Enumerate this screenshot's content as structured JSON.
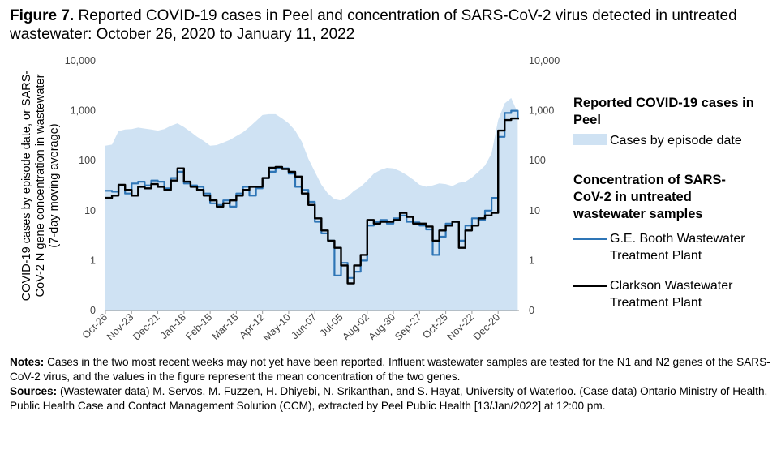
{
  "figure": {
    "label": "Figure 7.",
    "title": "Reported COVID-19 cases in Peel and concentration of SARS-CoV-2 virus detected in untreated wastewater: October 26, 2020 to January 11, 2022"
  },
  "legend": {
    "cases_heading": "Reported COVID-19 cases in Peel",
    "cases_item": "Cases by episode date",
    "ww_heading": "Concentration of SARS-CoV-2 in untreated wastewater samples",
    "booth_item": "G.E. Booth Wastewater Treatment Plant",
    "clarkson_item": "Clarkson Wastewater Treatment Plant"
  },
  "notes": {
    "notes_label": "Notes:",
    "notes_text": " Cases in the two most recent weeks may not yet have been reported. Influent wastewater samples are tested for the N1 and N2 genes of the SARS-CoV-2 virus, and the values in the figure represent the mean concentration of the two genes.",
    "sources_label": "Sources:",
    "sources_text": " (Wastewater data) M. Servos, M. Fuzzen, H. Dhiyebi, N. Srikanthan, and S. Hayat, University of Waterloo. (Case data) Ontario Ministry of Health, Public Health Case and Contact Management Solution (CCM), extracted by Peel Public Health [13/Jan/2022] at 12:00 pm."
  },
  "chart_data": {
    "type": "area",
    "scale": "log",
    "ylabel": "COVID-19 cases by episode date, or SARS-CoV-2 N gene concentration in wastewater (7-day moving average)",
    "y_ticks": [
      "10,000",
      "1,000",
      "100",
      "10",
      "1",
      "0"
    ],
    "x_tick_labels": [
      "Oct-26",
      "Nov-23",
      "Dec-21",
      "Jan-18",
      "Feb-15",
      "Mar-15",
      "Apr-12",
      "May-10",
      "Jun-07",
      "Jul-05",
      "Aug-02",
      "Aug-30",
      "Sep-27",
      "Oct-25",
      "Nov-22",
      "Dec-20"
    ],
    "x_ticks_weeks": [
      0,
      4,
      8,
      12,
      16,
      20,
      24,
      28,
      32,
      36,
      40,
      44,
      48,
      52,
      56,
      60
    ],
    "x_range_weeks": [
      0,
      63.2
    ],
    "colors": {
      "cases": "#cfe2f3",
      "booth": "#2e75b6",
      "clarkson": "#000000"
    },
    "series": [
      {
        "name": "Cases by episode date",
        "style": "area",
        "x_weeks": [
          0,
          1,
          2,
          3,
          4,
          5,
          6,
          7,
          8,
          9,
          10,
          11,
          12,
          13,
          14,
          15,
          16,
          17,
          18,
          19,
          20,
          21,
          22,
          23,
          24,
          25,
          26,
          27,
          28,
          29,
          30,
          31,
          32,
          33,
          34,
          35,
          36,
          37,
          38,
          39,
          40,
          41,
          42,
          43,
          44,
          45,
          46,
          47,
          48,
          49,
          50,
          51,
          52,
          53,
          54,
          55,
          56,
          57,
          58,
          59,
          60,
          61,
          62,
          63
        ],
        "values": [
          200,
          210,
          390,
          420,
          430,
          460,
          440,
          420,
          400,
          430,
          500,
          560,
          470,
          380,
          300,
          250,
          200,
          205,
          230,
          260,
          310,
          370,
          470,
          620,
          820,
          850,
          850,
          700,
          560,
          400,
          240,
          110,
          60,
          33,
          22,
          17,
          16,
          19,
          25,
          30,
          40,
          55,
          65,
          72,
          70,
          62,
          52,
          42,
          33,
          30,
          32,
          35,
          34,
          31,
          36,
          38,
          46,
          60,
          80,
          140,
          650,
          1400,
          1800,
          900
        ]
      },
      {
        "name": "G.E. Booth Wastewater Treatment Plant",
        "style": "line",
        "x_weeks": [
          0,
          1,
          2,
          3,
          4,
          5,
          6,
          7,
          8,
          9,
          10,
          11,
          12,
          13,
          14,
          15,
          16,
          17,
          18,
          19,
          20,
          21,
          22,
          23,
          24,
          25,
          26,
          27,
          28,
          29,
          30,
          31,
          32,
          33,
          34,
          35,
          36,
          37,
          38,
          39,
          40,
          41,
          42,
          43,
          44,
          45,
          46,
          47,
          48,
          49,
          50,
          51,
          52,
          53,
          54,
          55,
          56,
          57,
          58,
          59,
          60,
          61,
          62,
          63
        ],
        "values": [
          25,
          24,
          32,
          22,
          35,
          38,
          32,
          40,
          38,
          28,
          45,
          60,
          35,
          32,
          30,
          22,
          14,
          13,
          16,
          12,
          22,
          30,
          20,
          28,
          45,
          60,
          70,
          70,
          55,
          30,
          26,
          15,
          6,
          3.5,
          2.5,
          0.5,
          0.9,
          0.45,
          0.6,
          1.0,
          5,
          6,
          6.5,
          5.5,
          7,
          8,
          6,
          5.8,
          5,
          4.2,
          1.3,
          3,
          5.5,
          6,
          2.5,
          5,
          7,
          6.5,
          10,
          18,
          300,
          900,
          1000,
          700
        ]
      },
      {
        "name": "Clarkson Wastewater Treatment Plant",
        "style": "line",
        "x_weeks": [
          0,
          1,
          2,
          3,
          4,
          5,
          6,
          7,
          8,
          9,
          10,
          11,
          12,
          13,
          14,
          15,
          16,
          17,
          18,
          19,
          20,
          21,
          22,
          23,
          24,
          25,
          26,
          27,
          28,
          29,
          30,
          31,
          32,
          33,
          34,
          35,
          36,
          37,
          38,
          39,
          40,
          41,
          42,
          43,
          44,
          45,
          46,
          47,
          48,
          49,
          50,
          51,
          52,
          53,
          54,
          55,
          56,
          57,
          58,
          59,
          60,
          61,
          62,
          63
        ],
        "values": [
          18,
          20,
          33,
          26,
          20,
          30,
          28,
          34,
          30,
          26,
          40,
          70,
          38,
          30,
          26,
          20,
          16,
          12,
          14,
          16,
          20,
          26,
          30,
          30,
          45,
          72,
          75,
          68,
          60,
          48,
          22,
          13,
          7,
          4,
          2.5,
          1.8,
          0.8,
          0.35,
          0.8,
          1.3,
          6.5,
          5.5,
          6,
          6,
          6.5,
          9,
          7.5,
          5.5,
          5.5,
          4.8,
          2.5,
          4,
          5,
          6,
          1.8,
          4,
          5,
          7,
          8,
          9,
          400,
          650,
          700,
          700
        ]
      }
    ]
  }
}
